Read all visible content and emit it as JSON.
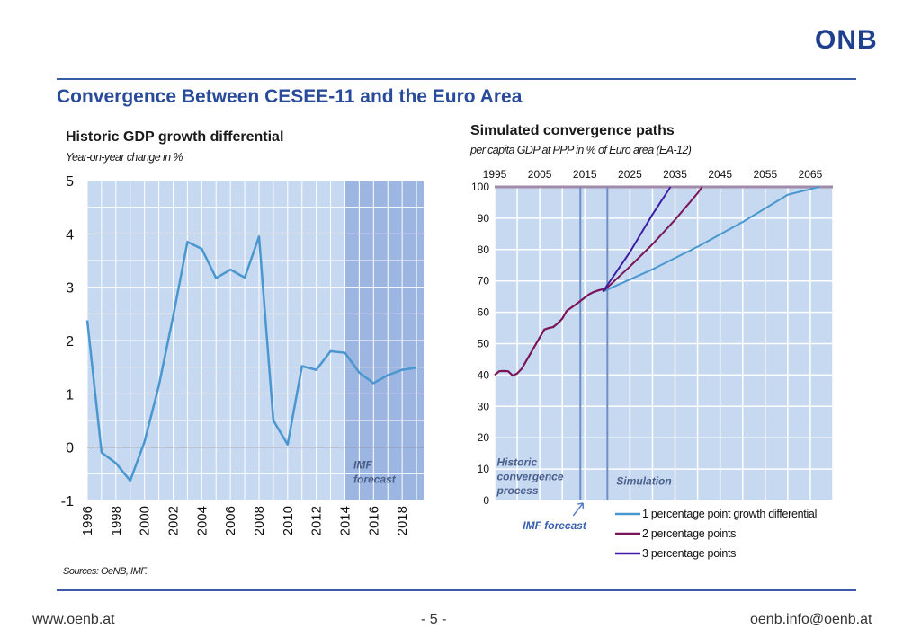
{
  "header": {
    "logo_text": "ONB"
  },
  "slide": {
    "title": "Convergence Between CESEE-11 and the Euro Area"
  },
  "footer": {
    "website": "www.oenb.at",
    "page": "- 5 -",
    "email": "oenb.info@oenb.at"
  },
  "sources": "Sources: OeNB, IMF.",
  "colors": {
    "title_blue": "#2a4b9a",
    "plot_bg": "#c6d9f1",
    "forecast_shade": "#8eaadb",
    "series1": "#4a97cf",
    "series2": "#7a1558",
    "series3": "#3f1ca6"
  },
  "chart_data": [
    {
      "type": "line",
      "title": "Historic GDP growth differential",
      "subtitle": "Year-on-year change in %",
      "x": [
        1996,
        1997,
        1998,
        1999,
        2000,
        2001,
        2002,
        2003,
        2004,
        2005,
        2006,
        2007,
        2008,
        2009,
        2010,
        2011,
        2012,
        2013,
        2014,
        2015,
        2016,
        2017,
        2018,
        2019
      ],
      "series": [
        {
          "values": [
            2.38,
            -0.1,
            -0.3,
            -0.63,
            0.1,
            1.15,
            2.45,
            3.85,
            3.72,
            3.17,
            3.33,
            3.18,
            3.95,
            0.5,
            0.05,
            1.52,
            1.45,
            1.8,
            1.77,
            1.4,
            1.2,
            1.35,
            1.45,
            1.49
          ]
        }
      ],
      "xticks": [
        "1996",
        "1998",
        "2000",
        "2002",
        "2004",
        "2006",
        "2008",
        "2010",
        "2012",
        "2014",
        "2016",
        "2018"
      ],
      "yticks": [
        "-1",
        "0",
        "1",
        "2",
        "3",
        "4",
        "5"
      ],
      "ylim": [
        -1,
        5
      ],
      "xlim": [
        1996,
        2019.5
      ],
      "forecast_start": 2014,
      "annotation": [
        "IMF",
        "forecast"
      ],
      "grid": true
    },
    {
      "type": "line",
      "title": "Simulated convergence paths",
      "subtitle": "per capita GDP at PPP in % of Euro area (EA-12)",
      "xticks": [
        "1995",
        "2005",
        "2015",
        "2025",
        "2035",
        "2045",
        "2055",
        "2065"
      ],
      "yticks": [
        "0",
        "10",
        "20",
        "30",
        "40",
        "50",
        "60",
        "70",
        "80",
        "90",
        "100"
      ],
      "ylim": [
        0,
        100
      ],
      "xlim": [
        1995,
        2070
      ],
      "historic": {
        "x": [
          1995,
          1996,
          1997,
          1998,
          1999,
          2000,
          2001,
          2002,
          2003,
          2004,
          2005,
          2006,
          2007,
          2008,
          2009,
          2010,
          2011,
          2012,
          2013,
          2014,
          2015,
          2016,
          2017,
          2018,
          2019,
          2020
        ],
        "values": [
          40,
          41.2,
          41.3,
          41.2,
          39.8,
          40.5,
          42,
          44.5,
          47,
          49.5,
          52,
          54.5,
          55,
          55.3,
          56.5,
          58,
          60.5,
          61.5,
          62.5,
          63.6,
          64.7,
          65.8,
          66.5,
          67,
          67.4,
          67.8
        ]
      },
      "series": [
        {
          "name": "1 percentage point growth differential",
          "x": [
            2019,
            2030,
            2040,
            2050,
            2060,
            2067
          ],
          "values": [
            66.6,
            73.7,
            80.9,
            88.8,
            97.5,
            100
          ]
        },
        {
          "name": "2 percentage points",
          "x": [
            2019,
            2025,
            2030,
            2035,
            2040,
            2041
          ],
          "values": [
            66.6,
            74.6,
            81.7,
            89.5,
            98.0,
            100
          ]
        },
        {
          "name": "3 percentage points",
          "x": [
            2019,
            2025,
            2030,
            2034,
            2036
          ],
          "values": [
            66.6,
            79.2,
            91.2,
            100,
            100
          ]
        }
      ],
      "markers": {
        "imf_forecast_year": 2014,
        "simulation_start_year": 2020
      },
      "annotations": {
        "historic": [
          "Historic",
          "convergence",
          "process"
        ],
        "simulation": "Simulation",
        "imf": "IMF forecast"
      },
      "grid": true
    }
  ]
}
